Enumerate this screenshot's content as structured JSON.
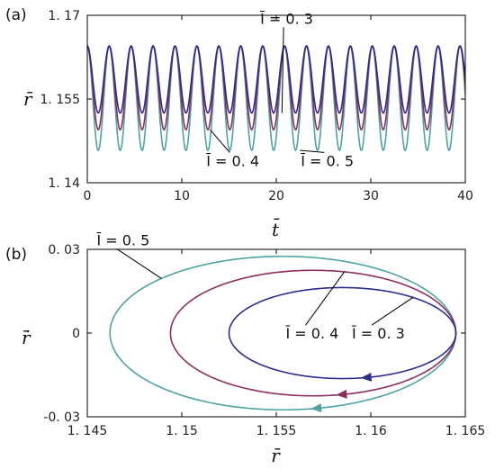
{
  "chart_data": [
    {
      "panel_label": "(a)",
      "type": "line",
      "xlabel": "t̄",
      "ylabel": "r̄",
      "xlim": [
        0,
        40
      ],
      "ylim": [
        1.14,
        1.17
      ],
      "x_ticks": [
        "0",
        "10",
        "20",
        "30",
        "40"
      ],
      "y_ticks": [
        "1. 14",
        "1. 155",
        "1. 17"
      ],
      "x_tick_values": [
        0,
        10,
        20,
        30,
        40
      ],
      "y_tick_values": [
        1.14,
        1.155,
        1.17
      ],
      "period": 2.32,
      "max_value": 1.1645,
      "series": [
        {
          "name": "Ī = 0.3",
          "label": "Ī = 0. 3",
          "min": 1.1525,
          "color": "#2c2d8f"
        },
        {
          "name": "Ī = 0.4",
          "label": "Ī = 0. 4",
          "min": 1.1495,
          "color": "#8c2f5e"
        },
        {
          "name": "Ī = 0.5",
          "label": "Ī = 0. 5",
          "min": 1.1458,
          "color": "#4fa3a2"
        }
      ],
      "annotations": [
        {
          "text": "Ī = 0. 3",
          "series": 0,
          "point": [
            20.6,
            1.1525
          ],
          "text_at": [
            20.2,
            1.1685
          ]
        },
        {
          "text": "Ī = 0. 4",
          "series": 1,
          "point": [
            13.0,
            1.1495
          ],
          "text_at": [
            14.5,
            1.143
          ]
        },
        {
          "text": "Ī = 0. 5",
          "series": 2,
          "point": [
            22.5,
            1.1458
          ],
          "text_at": [
            24.5,
            1.143
          ]
        }
      ]
    },
    {
      "panel_label": "(b)",
      "type": "line",
      "xlabel": "r̄",
      "ylabel": "ṙ̄",
      "xlim": [
        1.145,
        1.165
      ],
      "ylim": [
        -0.03,
        0.03
      ],
      "x_ticks": [
        "1. 145",
        "1. 15",
        "1. 155",
        "1. 16",
        "1. 165"
      ],
      "y_ticks": [
        "-0. 03",
        "0",
        "0. 03"
      ],
      "x_tick_values": [
        1.145,
        1.15,
        1.155,
        1.16,
        1.165
      ],
      "y_tick_values": [
        -0.03,
        0,
        0.03
      ],
      "series": [
        {
          "name": "Ī = 0.3",
          "label": "Ī = 0. 3",
          "r_min": 1.1525,
          "r_max": 1.1645,
          "rdot_amp": 0.0163,
          "color": "#2c2d8f"
        },
        {
          "name": "Ī = 0.4",
          "label": "Ī = 0. 4",
          "r_min": 1.1494,
          "r_max": 1.1645,
          "rdot_amp": 0.0225,
          "color": "#8c2f5e"
        },
        {
          "name": "Ī = 0.5",
          "label": "Ī = 0. 5",
          "r_min": 1.1462,
          "r_max": 1.1645,
          "rdot_amp": 0.0275,
          "color": "#4fa3a2"
        }
      ],
      "annotations": [
        {
          "text": "Ī = 0. 5",
          "series": 2,
          "theta": 2.35,
          "text_at": [
            1.1455,
            0.0315
          ]
        },
        {
          "text": "Ī = 0. 4",
          "series": 1,
          "theta": 1.35,
          "text_at": [
            1.1555,
            -0.002
          ]
        },
        {
          "text": "Ī = 0. 3",
          "series": 0,
          "theta": 0.9,
          "text_at": [
            1.159,
            -0.002
          ]
        }
      ]
    }
  ]
}
